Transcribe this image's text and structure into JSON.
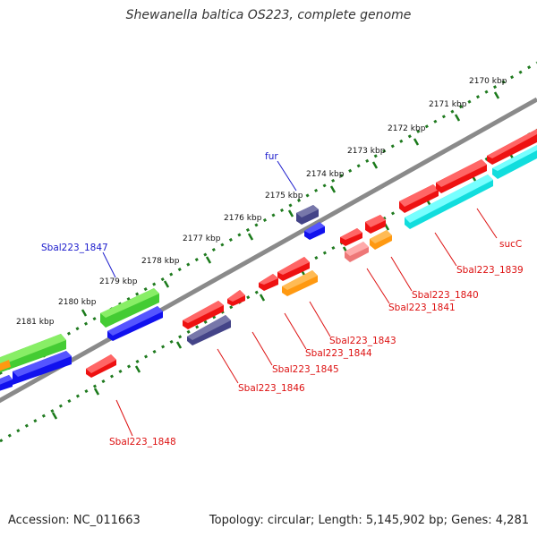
{
  "title": "Shewanella baltica OS223, complete genome",
  "footer": {
    "accession": "Accession: NC_011663",
    "summary": "Topology: circular; Length: 5,145,902 bp; Genes: 4,281"
  },
  "colors": {
    "backbone": "#8a8a8a",
    "tick_dots": "#1f7a1f",
    "tick_major": "#1a7a1a",
    "label_forward": "#1a1acc",
    "label_reverse": "#dd1111",
    "red": "#ee1111",
    "green": "#44cc33",
    "blue": "#1111ee",
    "purple": "#444488",
    "orange": "#ff9911",
    "cyan": "#11dddd",
    "pink": "#ee7777"
  },
  "ticks": [
    "2170 kbp",
    "2171 kbp",
    "2172 kbp",
    "2173 kbp",
    "2174 kbp",
    "2175 kbp",
    "2176 kbp",
    "2177 kbp",
    "2178 kbp",
    "2179 kbp",
    "2180 kbp",
    "2181 kbp"
  ],
  "gene_labels": {
    "fur": "fur",
    "sbal1847": "Sbal223_1847",
    "sucC": "sucC",
    "sbal1839": "Sbal223_1839",
    "sbal1840": "Sbal223_1840",
    "sbal1841": "Sbal223_1841",
    "sbal1843": "Sbal223_1843",
    "sbal1844": "Sbal223_1844",
    "sbal1845": "Sbal223_1845",
    "sbal1846": "Sbal223_1846",
    "sbal1848": "Sbal223_1848"
  }
}
